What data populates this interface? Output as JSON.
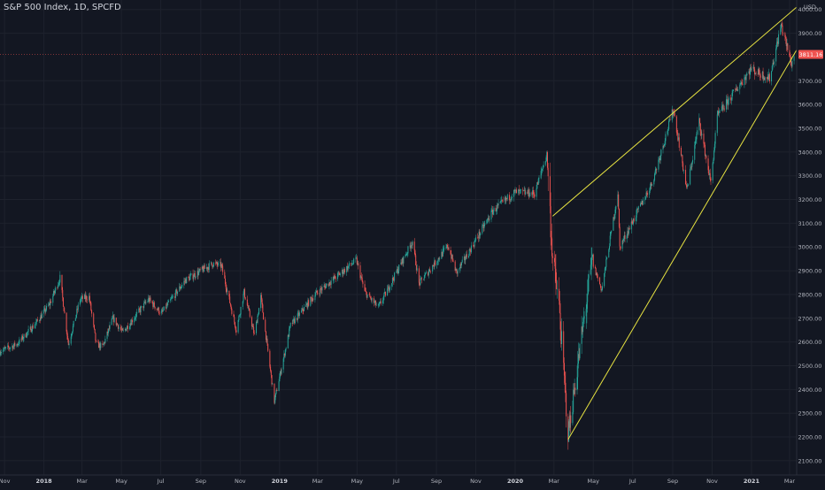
{
  "header": {
    "title": "S&P 500 Index, 1D, SPCFD"
  },
  "chart_data": {
    "type": "candlestick",
    "title": "S&P 500 Index, 1D, SPCFD",
    "currency_label": "USD",
    "current_price_label": "3811.16",
    "current_price": 3811.16,
    "ylim": [
      2040,
      4040
    ],
    "y_ticks": [
      {
        "value": 2100,
        "label": "2100.00"
      },
      {
        "value": 2200,
        "label": "2200.00"
      },
      {
        "value": 2300,
        "label": "2300.00"
      },
      {
        "value": 2400,
        "label": "2400.00"
      },
      {
        "value": 2500,
        "label": "2500.00"
      },
      {
        "value": 2600,
        "label": "2600.00"
      },
      {
        "value": 2700,
        "label": "2700.00"
      },
      {
        "value": 2800,
        "label": "2800.00"
      },
      {
        "value": 2900,
        "label": "2900.00"
      },
      {
        "value": 3000,
        "label": "3000.00"
      },
      {
        "value": 3100,
        "label": "3100.00"
      },
      {
        "value": 3200,
        "label": "3200.00"
      },
      {
        "value": 3300,
        "label": "3300.00"
      },
      {
        "value": 3400,
        "label": "3400.00"
      },
      {
        "value": 3500,
        "label": "3500.00"
      },
      {
        "value": 3600,
        "label": "3600.00"
      },
      {
        "value": 3700,
        "label": "3700.00"
      },
      {
        "value": 3900,
        "label": "3900.00"
      },
      {
        "value": 4000,
        "label": "4000.00"
      }
    ],
    "x_range": [
      "2017-10-25",
      "2021-03-12"
    ],
    "x_ticks": [
      {
        "date": "2017-11-01",
        "label": "Nov"
      },
      {
        "date": "2018-01-01",
        "label": "2018"
      },
      {
        "date": "2018-03-01",
        "label": "Mar"
      },
      {
        "date": "2018-05-01",
        "label": "May"
      },
      {
        "date": "2018-07-01",
        "label": "Jul"
      },
      {
        "date": "2018-09-01",
        "label": "Sep"
      },
      {
        "date": "2018-11-01",
        "label": "Nov"
      },
      {
        "date": "2019-01-01",
        "label": "2019"
      },
      {
        "date": "2019-03-01",
        "label": "Mar"
      },
      {
        "date": "2019-05-01",
        "label": "May"
      },
      {
        "date": "2019-07-01",
        "label": "Jul"
      },
      {
        "date": "2019-09-01",
        "label": "Sep"
      },
      {
        "date": "2019-11-01",
        "label": "Nov"
      },
      {
        "date": "2020-01-01",
        "label": "2020"
      },
      {
        "date": "2020-03-01",
        "label": "Mar"
      },
      {
        "date": "2020-05-01",
        "label": "May"
      },
      {
        "date": "2020-07-01",
        "label": "Jul"
      },
      {
        "date": "2020-09-01",
        "label": "Sep"
      },
      {
        "date": "2020-11-01",
        "label": "Nov"
      },
      {
        "date": "2021-01-01",
        "label": "2021"
      },
      {
        "date": "2021-03-01",
        "label": "Mar"
      }
    ],
    "price_path": [
      [
        "2017-10-25",
        2560
      ],
      [
        "2017-11-20",
        2590
      ],
      [
        "2017-12-20",
        2680
      ],
      [
        "2018-01-10",
        2760
      ],
      [
        "2018-01-26",
        2870
      ],
      [
        "2018-02-08",
        2590
      ],
      [
        "2018-02-26",
        2780
      ],
      [
        "2018-03-12",
        2790
      ],
      [
        "2018-03-23",
        2590
      ],
      [
        "2018-04-02",
        2580
      ],
      [
        "2018-04-18",
        2700
      ],
      [
        "2018-05-03",
        2640
      ],
      [
        "2018-06-12",
        2780
      ],
      [
        "2018-07-02",
        2720
      ],
      [
        "2018-08-08",
        2860
      ],
      [
        "2018-09-20",
        2930
      ],
      [
        "2018-10-03",
        2920
      ],
      [
        "2018-10-26",
        2650
      ],
      [
        "2018-11-07",
        2810
      ],
      [
        "2018-11-23",
        2630
      ],
      [
        "2018-12-03",
        2790
      ],
      [
        "2018-12-24",
        2350
      ],
      [
        "2019-01-18",
        2670
      ],
      [
        "2019-02-25",
        2800
      ],
      [
        "2019-04-30",
        2945
      ],
      [
        "2019-05-13",
        2810
      ],
      [
        "2019-06-03",
        2745
      ],
      [
        "2019-07-26",
        3025
      ],
      [
        "2019-08-05",
        2845
      ],
      [
        "2019-09-19",
        3005
      ],
      [
        "2019-10-02",
        2890
      ],
      [
        "2019-11-27",
        3150
      ],
      [
        "2019-12-31",
        3230
      ],
      [
        "2020-01-31",
        3225
      ],
      [
        "2020-02-19",
        3390
      ],
      [
        "2020-02-28",
        2950
      ],
      [
        "2020-03-09",
        2750
      ],
      [
        "2020-03-23",
        2210
      ],
      [
        "2020-04-29",
        2940
      ],
      [
        "2020-05-14",
        2820
      ],
      [
        "2020-06-08",
        3230
      ],
      [
        "2020-06-11",
        3000
      ],
      [
        "2020-07-31",
        3270
      ],
      [
        "2020-09-02",
        3580
      ],
      [
        "2020-09-23",
        3240
      ],
      [
        "2020-10-12",
        3530
      ],
      [
        "2020-10-30",
        3270
      ],
      [
        "2020-11-09",
        3550
      ],
      [
        "2020-12-31",
        3750
      ],
      [
        "2021-01-29",
        3710
      ],
      [
        "2021-02-16",
        3935
      ],
      [
        "2021-03-04",
        3770
      ],
      [
        "2021-03-08",
        3811
      ]
    ],
    "trendlines": [
      {
        "from": [
          "2020-03-23",
          2190
        ],
        "to": [
          "2021-03-12",
          3830
        ],
        "color": "#e6e241"
      },
      {
        "from": [
          "2020-02-28",
          3130
        ],
        "to": [
          "2021-03-12",
          4010
        ],
        "color": "#e6e241"
      }
    ],
    "colors": {
      "up": "#26a69a",
      "down": "#ef5350",
      "background": "#131722",
      "grid": "#1e222d",
      "text": "#b2b5be",
      "price_badge": "#ef5350"
    },
    "grid": true,
    "legend": "none"
  }
}
